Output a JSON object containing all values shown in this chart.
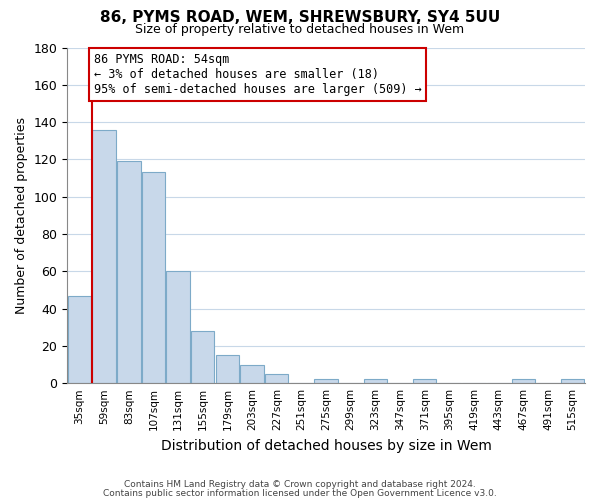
{
  "title": "86, PYMS ROAD, WEM, SHREWSBURY, SY4 5UU",
  "subtitle": "Size of property relative to detached houses in Wem",
  "xlabel": "Distribution of detached houses by size in Wem",
  "ylabel": "Number of detached properties",
  "bin_labels": [
    "35sqm",
    "59sqm",
    "83sqm",
    "107sqm",
    "131sqm",
    "155sqm",
    "179sqm",
    "203sqm",
    "227sqm",
    "251sqm",
    "275sqm",
    "299sqm",
    "323sqm",
    "347sqm",
    "371sqm",
    "395sqm",
    "419sqm",
    "443sqm",
    "467sqm",
    "491sqm",
    "515sqm"
  ],
  "bar_heights": [
    47,
    136,
    119,
    113,
    60,
    28,
    15,
    10,
    5,
    0,
    2,
    0,
    2,
    0,
    2,
    0,
    0,
    0,
    2,
    0,
    2
  ],
  "bar_color": "#c8d8ea",
  "bar_edgecolor": "#7daac8",
  "ylim": [
    0,
    180
  ],
  "yticks": [
    0,
    20,
    40,
    60,
    80,
    100,
    120,
    140,
    160,
    180
  ],
  "annotation_title": "86 PYMS ROAD: 54sqm",
  "annotation_line1": "← 3% of detached houses are smaller (18)",
  "annotation_line2": "95% of semi-detached houses are larger (509) →",
  "annotation_box_color": "#ffffff",
  "annotation_box_edgecolor": "#cc0000",
  "property_line_color": "#cc0000",
  "footer1": "Contains HM Land Registry data © Crown copyright and database right 2024.",
  "footer2": "Contains public sector information licensed under the Open Government Licence v3.0.",
  "background_color": "#ffffff",
  "grid_color": "#c8d8e8",
  "property_line_index": 0.5
}
